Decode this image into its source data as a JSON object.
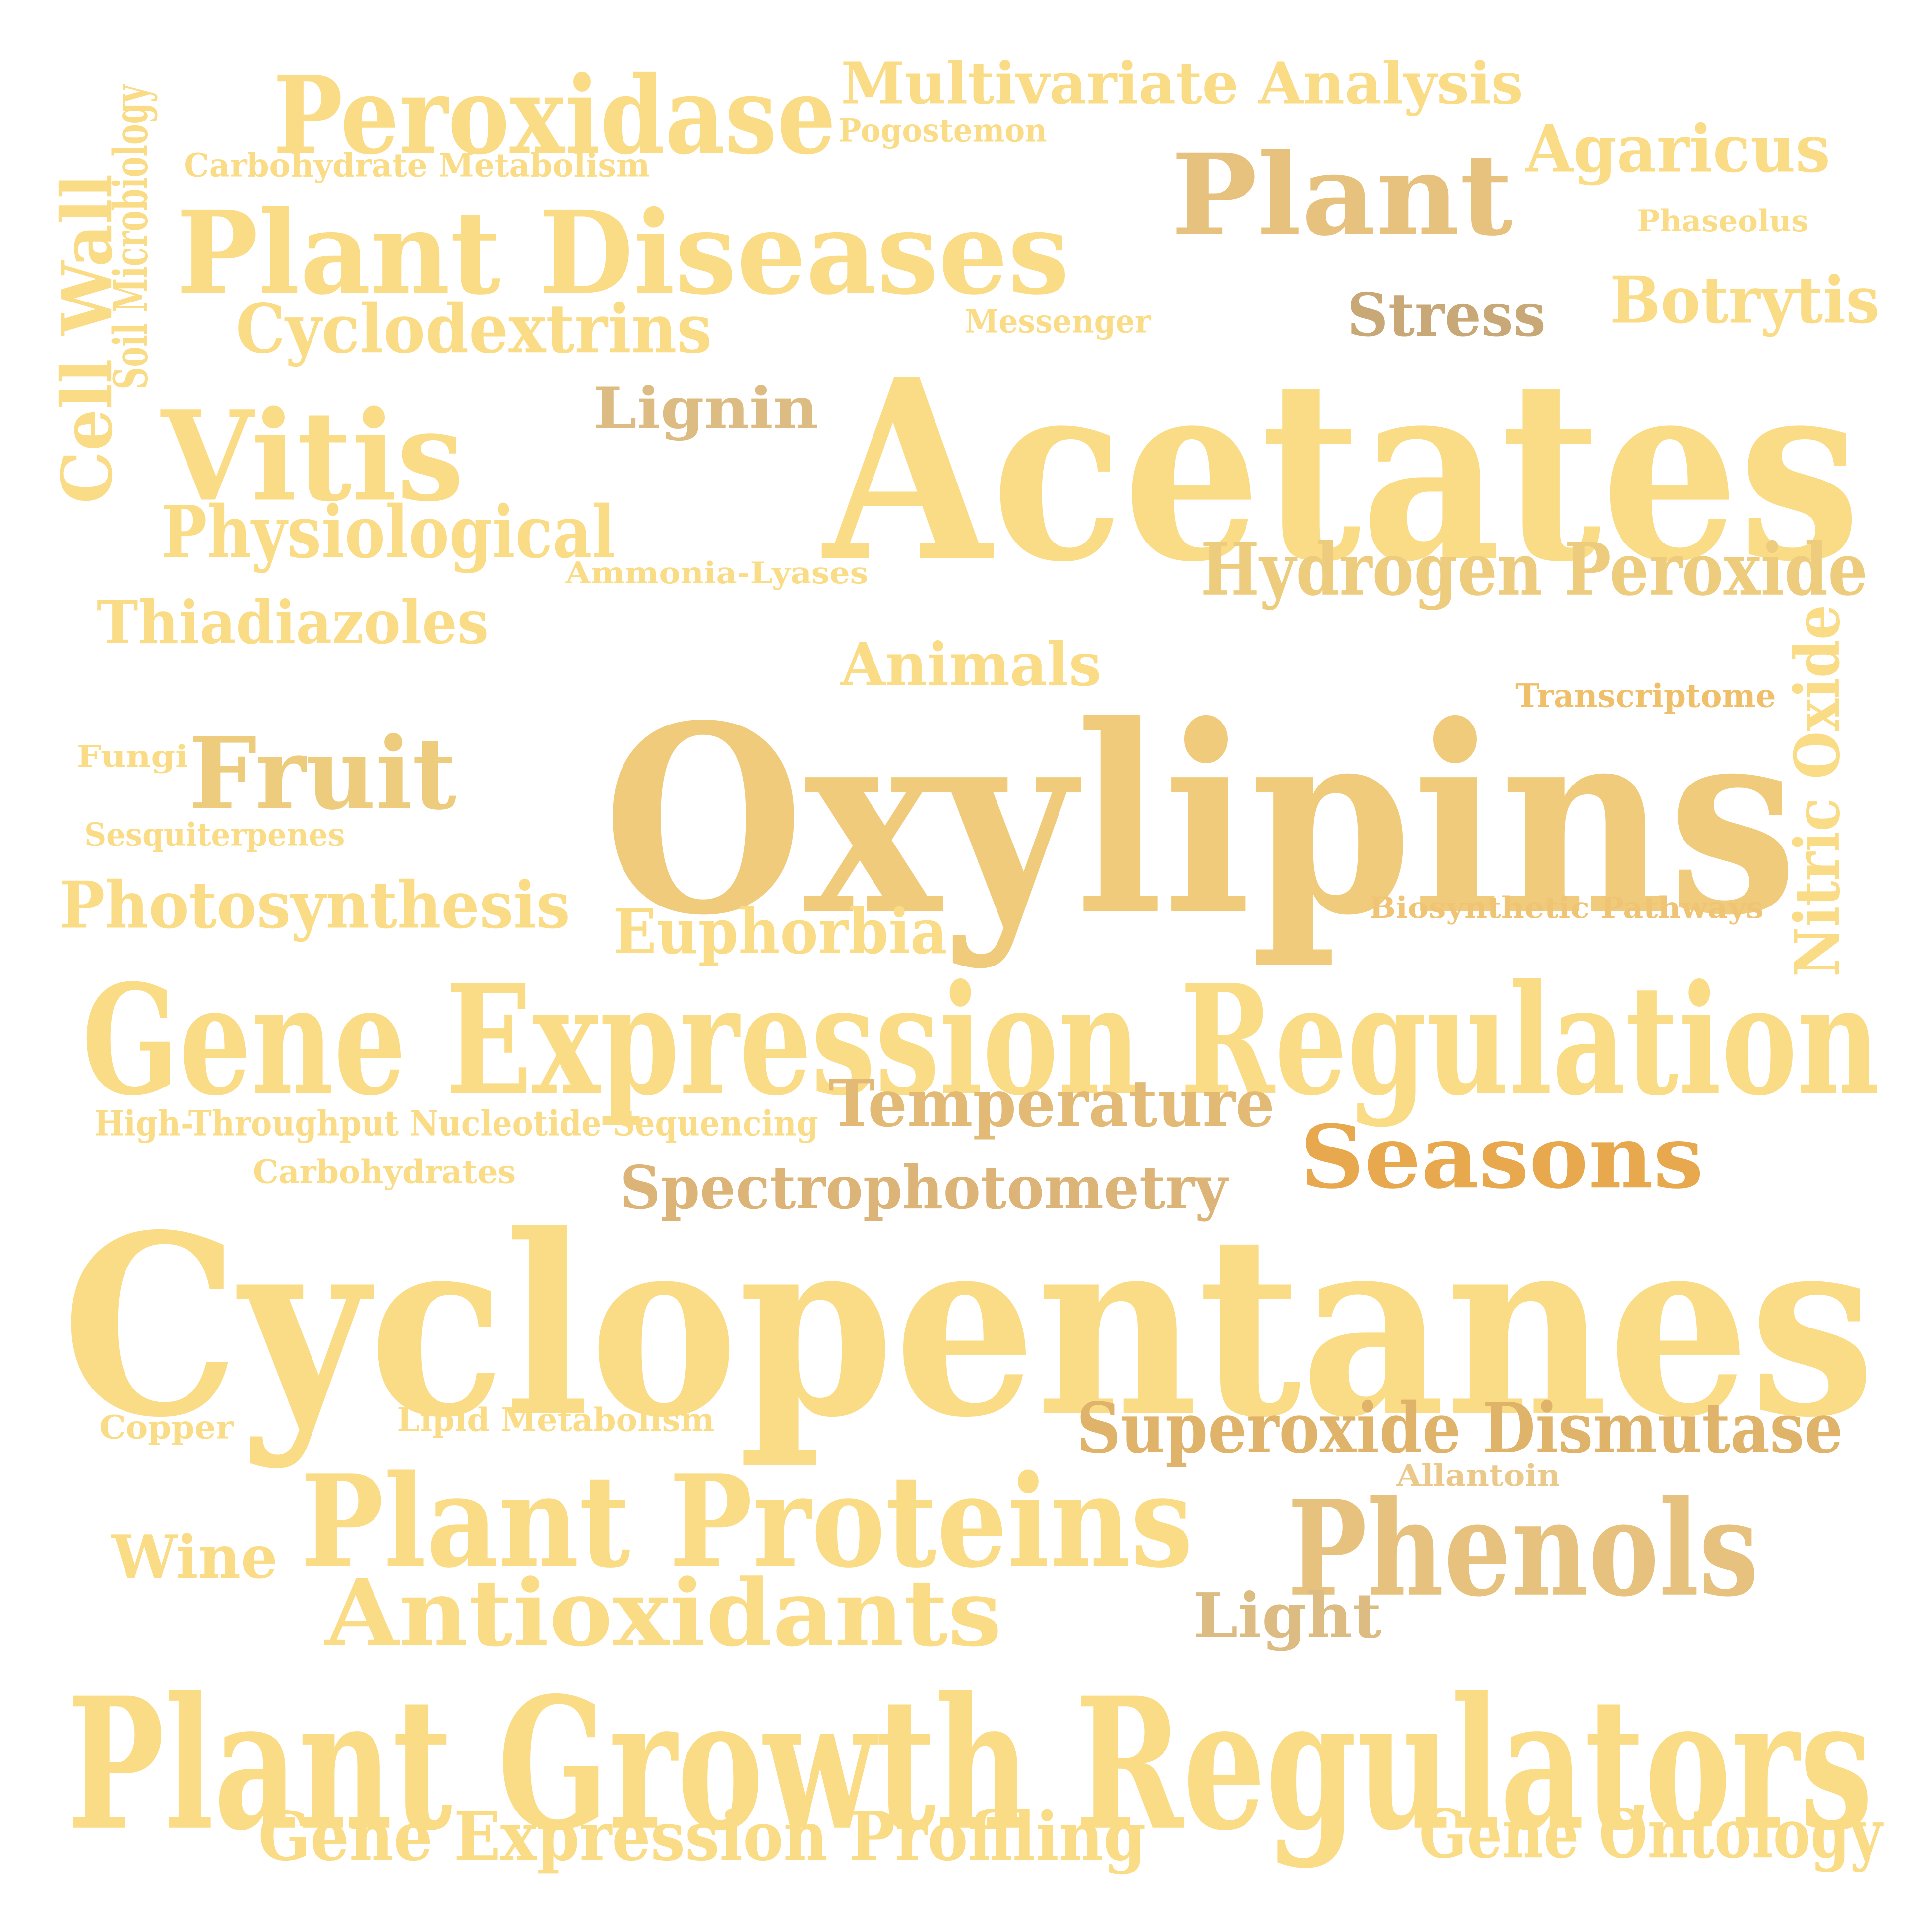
{
  "words": [
    {
      "text": "Cyclopentanes",
      "color": "#FADB86"
    },
    {
      "text": "Oxylipins",
      "color": "#EFCB7B"
    },
    {
      "text": "Acetates",
      "color": "#FADB86"
    },
    {
      "text": "Plant Growth Regulators",
      "color": "#FADB86"
    },
    {
      "text": "Gene Expression Regulation",
      "color": "#FADB86"
    },
    {
      "text": "Plant Diseases",
      "color": "#FADB86"
    },
    {
      "text": "Plant Proteins",
      "color": "#FADB86"
    },
    {
      "text": "Peroxidase",
      "color": "#FADB86"
    },
    {
      "text": "Plant",
      "color": "#E6C27E"
    },
    {
      "text": "Vitis",
      "color": "#FADB86"
    },
    {
      "text": "Phenols",
      "color": "#E6C27E"
    },
    {
      "text": "Antioxidants",
      "color": "#FADB86"
    },
    {
      "text": "Fruit",
      "color": "#EDCC7E"
    },
    {
      "text": "Seasons",
      "color": "#E8A94E"
    },
    {
      "text": "Multivariate Analysis",
      "color": "#FADB86"
    },
    {
      "text": "Gene Expression Profiling",
      "color": "#FADB86"
    },
    {
      "text": "Hydrogen Peroxide",
      "color": "#EDCC7E"
    },
    {
      "text": "Superoxide Dismutase",
      "color": "#E0B36B"
    },
    {
      "text": "Cyclodextrins",
      "color": "#FADB86"
    },
    {
      "text": "Physiological",
      "color": "#FADB86"
    },
    {
      "text": "Photosynthesis",
      "color": "#FADB86"
    },
    {
      "text": "Gene Ontology",
      "color": "#FADB86"
    },
    {
      "text": "Agaricus",
      "color": "#FADB86"
    },
    {
      "text": "Botrytis",
      "color": "#FADB86"
    },
    {
      "text": "Temperature",
      "color": "#E2BA75"
    },
    {
      "text": "Spectrophotometry",
      "color": "#DDB477"
    },
    {
      "text": "Euphorbia",
      "color": "#FADB86"
    },
    {
      "text": "Thiadiazoles",
      "color": "#FADB86"
    },
    {
      "text": "Animals",
      "color": "#FADB86"
    },
    {
      "text": "Lignin",
      "color": "#DCBC82"
    },
    {
      "text": "Stress",
      "color": "#C9A877"
    },
    {
      "text": "Light",
      "color": "#DCBC82"
    },
    {
      "text": "Wine",
      "color": "#FADB86"
    },
    {
      "text": "Cell Wall",
      "color": "#FADB86"
    },
    {
      "text": "Nitric Oxide",
      "color": "#FADB86"
    },
    {
      "text": "Soil Microbiology",
      "color": "#FADB86"
    },
    {
      "text": "Carbohydrate Metabolism",
      "color": "#FADB86"
    },
    {
      "text": "Pogostemon",
      "color": "#FADB86"
    },
    {
      "text": "Phaseolus",
      "color": "#FADB86"
    },
    {
      "text": "Messenger",
      "color": "#FADB86"
    },
    {
      "text": "Ammonia-Lyases",
      "color": "#FADB86"
    },
    {
      "text": "Transcriptome",
      "color": "#F0BF6A"
    },
    {
      "text": "Fungi",
      "color": "#FADB86"
    },
    {
      "text": "Sesquiterpenes",
      "color": "#FADB86"
    },
    {
      "text": "Biosynthetic Pathways",
      "color": "#EFC474"
    },
    {
      "text": "High-Throughput Nucleotide Sequencing",
      "color": "#FADB86"
    },
    {
      "text": "Carbohydrates",
      "color": "#FADB86"
    },
    {
      "text": "Copper",
      "color": "#FADB86"
    },
    {
      "text": "Lipid Metabolism",
      "color": "#FADB86"
    },
    {
      "text": "Allantoin",
      "color": "#EBC98A"
    }
  ]
}
